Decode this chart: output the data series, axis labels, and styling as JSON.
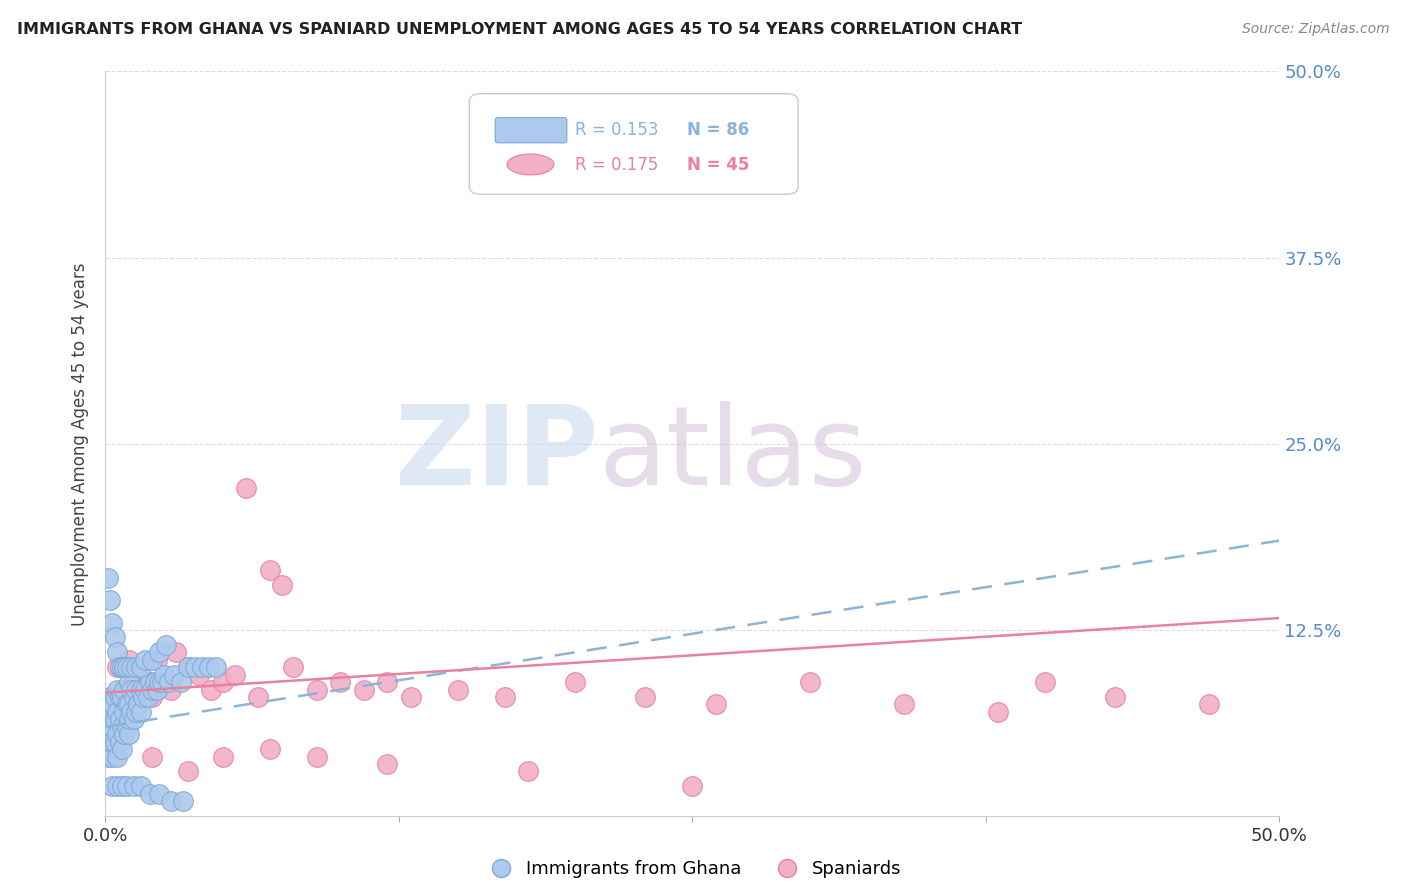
{
  "title": "IMMIGRANTS FROM GHANA VS SPANIARD UNEMPLOYMENT AMONG AGES 45 TO 54 YEARS CORRELATION CHART",
  "source": "Source: ZipAtlas.com",
  "ylabel": "Unemployment Among Ages 45 to 54 years",
  "xlim": [
    0.0,
    0.5
  ],
  "ylim": [
    0.0,
    0.5
  ],
  "yticks": [
    0.0,
    0.125,
    0.25,
    0.375,
    0.5
  ],
  "ytick_labels": [
    "",
    "12.5%",
    "25.0%",
    "37.5%",
    "50.0%"
  ],
  "xticks": [
    0.0,
    0.125,
    0.25,
    0.375,
    0.5
  ],
  "xtick_labels": [
    "0.0%",
    "",
    "",
    "",
    "50.0%"
  ],
  "ghana_color": "#adc9ed",
  "spaniard_color": "#f2afc8",
  "ghana_edge_color": "#7baad4",
  "spaniard_edge_color": "#e87fa8",
  "ghana_line_color": "#8ab4d8",
  "spaniard_line_color": "#e8819e",
  "right_tick_color": "#5588cc",
  "grid_color": "#dddddd",
  "background_color": "#ffffff",
  "title_color": "#222222",
  "ylabel_color": "#444444",
  "ghana_scatter_x": [
    0.001,
    0.001,
    0.001,
    0.002,
    0.002,
    0.002,
    0.002,
    0.003,
    0.003,
    0.003,
    0.003,
    0.004,
    0.004,
    0.004,
    0.005,
    0.005,
    0.005,
    0.005,
    0.006,
    0.006,
    0.006,
    0.007,
    0.007,
    0.007,
    0.008,
    0.008,
    0.008,
    0.009,
    0.009,
    0.01,
    0.01,
    0.01,
    0.01,
    0.011,
    0.011,
    0.012,
    0.012,
    0.013,
    0.013,
    0.014,
    0.015,
    0.015,
    0.016,
    0.017,
    0.018,
    0.019,
    0.02,
    0.021,
    0.022,
    0.023,
    0.024,
    0.025,
    0.027,
    0.029,
    0.032,
    0.035,
    0.038,
    0.041,
    0.044,
    0.047,
    0.001,
    0.002,
    0.003,
    0.004,
    0.005,
    0.006,
    0.007,
    0.008,
    0.009,
    0.011,
    0.013,
    0.015,
    0.017,
    0.02,
    0.023,
    0.026,
    0.003,
    0.005,
    0.007,
    0.009,
    0.012,
    0.015,
    0.019,
    0.023,
    0.028,
    0.033
  ],
  "ghana_scatter_y": [
    0.04,
    0.06,
    0.07,
    0.05,
    0.06,
    0.07,
    0.08,
    0.04,
    0.05,
    0.06,
    0.075,
    0.05,
    0.065,
    0.08,
    0.04,
    0.055,
    0.07,
    0.085,
    0.05,
    0.065,
    0.08,
    0.045,
    0.06,
    0.08,
    0.055,
    0.07,
    0.085,
    0.06,
    0.075,
    0.055,
    0.065,
    0.075,
    0.09,
    0.07,
    0.085,
    0.065,
    0.08,
    0.07,
    0.085,
    0.075,
    0.07,
    0.085,
    0.08,
    0.085,
    0.08,
    0.09,
    0.085,
    0.09,
    0.085,
    0.09,
    0.09,
    0.095,
    0.09,
    0.095,
    0.09,
    0.1,
    0.1,
    0.1,
    0.1,
    0.1,
    0.16,
    0.145,
    0.13,
    0.12,
    0.11,
    0.1,
    0.1,
    0.1,
    0.1,
    0.1,
    0.1,
    0.1,
    0.105,
    0.105,
    0.11,
    0.115,
    0.02,
    0.02,
    0.02,
    0.02,
    0.02,
    0.02,
    0.015,
    0.015,
    0.01,
    0.01
  ],
  "spaniard_scatter_x": [
    0.005,
    0.008,
    0.01,
    0.012,
    0.015,
    0.018,
    0.02,
    0.022,
    0.025,
    0.028,
    0.03,
    0.035,
    0.04,
    0.045,
    0.05,
    0.055,
    0.06,
    0.065,
    0.07,
    0.075,
    0.08,
    0.09,
    0.1,
    0.11,
    0.12,
    0.13,
    0.15,
    0.17,
    0.2,
    0.23,
    0.26,
    0.3,
    0.34,
    0.38,
    0.43,
    0.47,
    0.02,
    0.035,
    0.05,
    0.07,
    0.09,
    0.12,
    0.18,
    0.25,
    0.4
  ],
  "spaniard_scatter_y": [
    0.1,
    0.085,
    0.105,
    0.09,
    0.08,
    0.09,
    0.08,
    0.105,
    0.09,
    0.085,
    0.11,
    0.1,
    0.095,
    0.085,
    0.09,
    0.095,
    0.22,
    0.08,
    0.165,
    0.155,
    0.1,
    0.085,
    0.09,
    0.085,
    0.09,
    0.08,
    0.085,
    0.08,
    0.09,
    0.08,
    0.075,
    0.09,
    0.075,
    0.07,
    0.08,
    0.075,
    0.04,
    0.03,
    0.04,
    0.045,
    0.04,
    0.035,
    0.03,
    0.02,
    0.09
  ],
  "ghana_line_start_y": 0.06,
  "ghana_line_end_y": 0.185,
  "spaniard_line_start_y": 0.083,
  "spaniard_line_end_y": 0.133
}
